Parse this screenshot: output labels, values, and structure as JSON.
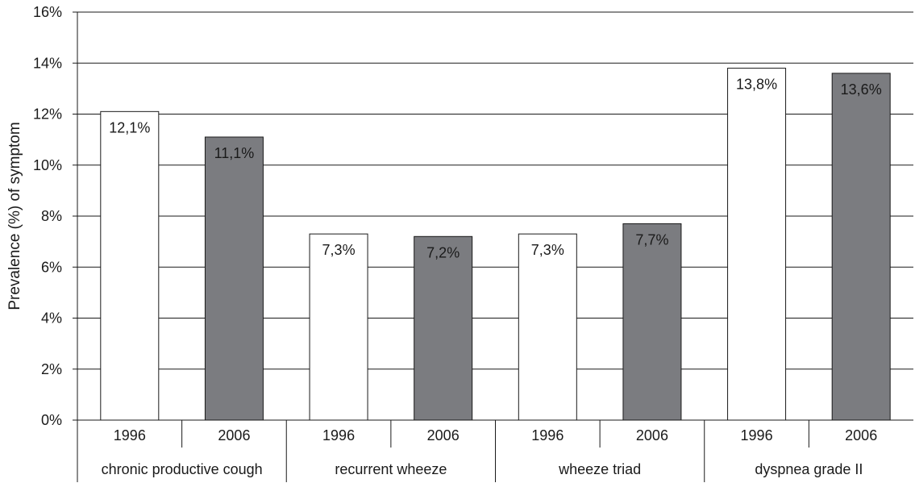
{
  "chart_data": {
    "type": "bar",
    "ylabel": "Prevalence (%) of symptom",
    "ylim": [
      0,
      16
    ],
    "y_ticks": [
      0,
      2,
      4,
      6,
      8,
      10,
      12,
      14,
      16
    ],
    "y_tick_labels": [
      "0%",
      "2%",
      "4%",
      "6%",
      "8%",
      "10%",
      "12%",
      "14%",
      "16%"
    ],
    "grid": true,
    "groups": [
      {
        "name": "chronic productive cough",
        "bars": [
          {
            "year": "1996",
            "value": 12.1,
            "label": "12,1%"
          },
          {
            "year": "2006",
            "value": 11.1,
            "label": "11,1%"
          }
        ]
      },
      {
        "name": "recurrent wheeze",
        "bars": [
          {
            "year": "1996",
            "value": 7.3,
            "label": "7,3%"
          },
          {
            "year": "2006",
            "value": 7.2,
            "label": "7,2%"
          }
        ]
      },
      {
        "name": "wheeze triad",
        "bars": [
          {
            "year": "1996",
            "value": 7.3,
            "label": "7,3%"
          },
          {
            "year": "2006",
            "value": 7.7,
            "label": "7,7%"
          }
        ]
      },
      {
        "name": "dyspnea grade II",
        "bars": [
          {
            "year": "1996",
            "value": 13.8,
            "label": "13,8%"
          },
          {
            "year": "2006",
            "value": 13.6,
            "label": "13,6%"
          }
        ]
      }
    ],
    "series_colors": {
      "1996": "#ffffff",
      "2006": "#7b7c80"
    }
  }
}
